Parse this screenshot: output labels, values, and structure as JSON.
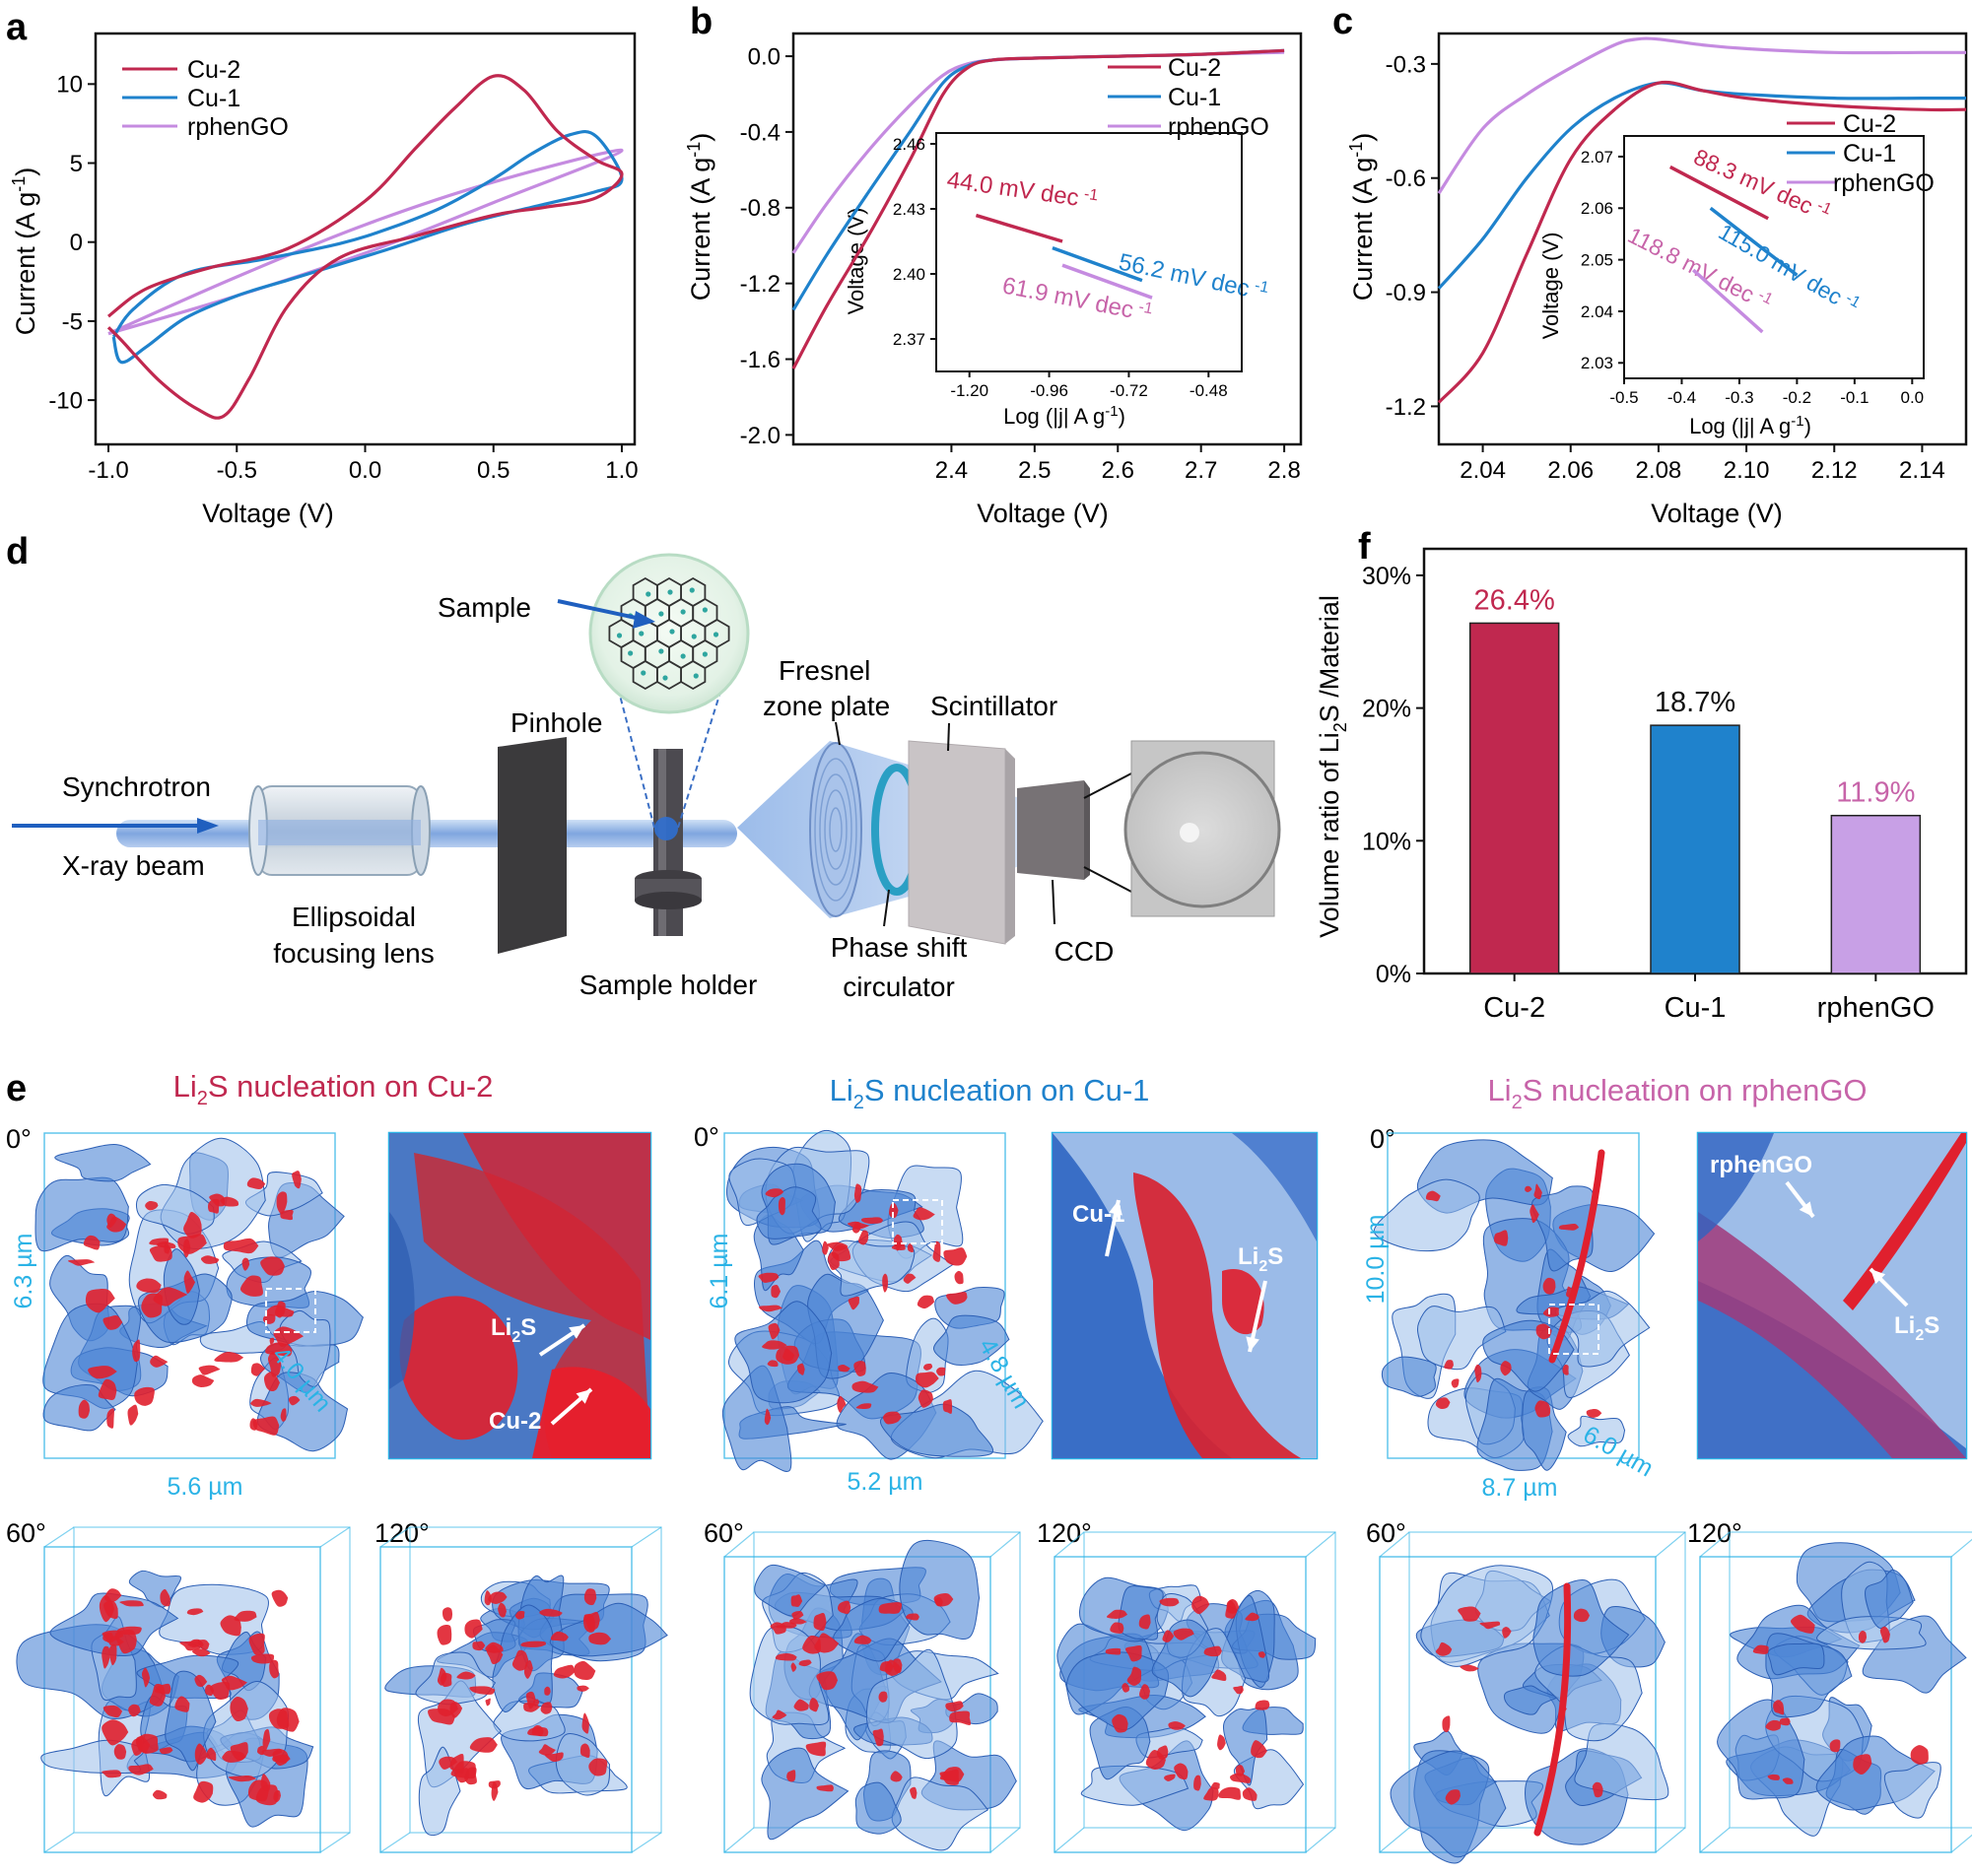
{
  "colors": {
    "cu2": "#c0284f",
    "cu1": "#1f82cc",
    "rphengo": "#c58be0",
    "bar_rphengo": "#c8a0e6",
    "cyan": "#2bb3e6",
    "mag": "#c764a9"
  },
  "panels": {
    "a": "a",
    "b": "b",
    "c": "c",
    "d": "d",
    "e": "e",
    "f": "f"
  },
  "legend": [
    "Cu-2",
    "Cu-1",
    "rphenGO"
  ],
  "chart_data": [
    {
      "id": "a",
      "type": "line",
      "xlabel": "Voltage (V)",
      "ylabel_main": "Current (A g",
      "ylabel_sup": "-1",
      "ylabel_end": ")",
      "xlim": [
        -1.05,
        1.05
      ],
      "ylim": [
        -12.8,
        13.2
      ],
      "xticks": [
        -1.0,
        -0.5,
        0.0,
        0.5,
        1.0
      ],
      "xtick_labels": [
        "-1.0",
        "-0.5",
        "0.0",
        "0.5",
        "1.0"
      ],
      "yticks": [
        -10,
        -5,
        0,
        5,
        10
      ],
      "ytick_labels": [
        "-10",
        "-5",
        "0",
        "5",
        "10"
      ],
      "series": [
        {
          "name": "Cu-2",
          "x": [
            -1.0,
            -0.9,
            -0.8,
            -0.6,
            -0.3,
            0.0,
            0.2,
            0.35,
            0.5,
            0.62,
            0.75,
            0.9,
            1.0,
            0.9,
            0.7,
            0.5,
            0.2,
            -0.1,
            -0.3,
            -0.45,
            -0.55,
            -0.65,
            -0.8,
            -0.95,
            -1.0
          ],
          "y": [
            -4.7,
            -3.4,
            -2.6,
            -1.6,
            -0.4,
            2.6,
            6.0,
            8.5,
            10.5,
            9.6,
            7.0,
            5.2,
            4.3,
            2.8,
            2.2,
            1.7,
            0.4,
            -1.0,
            -4.0,
            -8.6,
            -11.0,
            -10.6,
            -8.8,
            -6.2,
            -5.4
          ]
        },
        {
          "name": "Cu-1",
          "x": [
            -0.98,
            -0.9,
            -0.7,
            -0.4,
            -0.1,
            0.1,
            0.3,
            0.5,
            0.65,
            0.8,
            0.9,
            1.0,
            0.9,
            0.7,
            0.4,
            0.1,
            -0.1,
            -0.3,
            -0.5,
            -0.7,
            -0.85,
            -0.95,
            -0.98
          ],
          "y": [
            -6.0,
            -4.2,
            -2.0,
            -1.1,
            -0.1,
            0.9,
            2.2,
            4.0,
            5.6,
            6.8,
            6.7,
            4.0,
            3.2,
            2.4,
            1.2,
            -0.4,
            -1.4,
            -2.4,
            -3.4,
            -4.8,
            -6.6,
            -7.6,
            -6.0
          ]
        },
        {
          "name": "rphenGO",
          "x": [
            -1.0,
            -0.5,
            0.0,
            0.5,
            1.0,
            0.5,
            0.0,
            -0.5,
            -1.0
          ],
          "y": [
            -5.8,
            -2.2,
            1.1,
            3.8,
            5.8,
            2.5,
            -0.7,
            -3.4,
            -5.8
          ]
        }
      ]
    },
    {
      "id": "b",
      "type": "line",
      "xlabel": "Voltage (V)",
      "ylabel_main": "Current (A g",
      "ylabel_sup": "-1",
      "ylabel_end": ")",
      "xlim": [
        2.21,
        2.82
      ],
      "ylim": [
        -2.05,
        0.12
      ],
      "xticks": [
        2.4,
        2.5,
        2.6,
        2.7,
        2.8
      ],
      "xtick_labels": [
        "2.4",
        "2.5",
        "2.6",
        "2.7",
        "2.8"
      ],
      "yticks": [
        0.0,
        -0.4,
        -0.8,
        -1.2,
        -1.6,
        -2.0
      ],
      "ytick_labels": [
        "0.0",
        "-0.4",
        "-0.8",
        "-1.2",
        "-1.6",
        "-2.0"
      ],
      "series": [
        {
          "name": "Cu-2",
          "x": [
            2.21,
            2.25,
            2.3,
            2.35,
            2.39,
            2.42,
            2.45,
            2.5,
            2.6,
            2.7,
            2.8
          ],
          "y": [
            -1.65,
            -1.32,
            -0.95,
            -0.55,
            -0.2,
            -0.06,
            -0.02,
            -0.01,
            0.0,
            0.01,
            0.03
          ]
        },
        {
          "name": "Cu-1",
          "x": [
            2.21,
            2.25,
            2.3,
            2.35,
            2.39,
            2.42,
            2.45,
            2.5,
            2.6,
            2.7,
            2.8
          ],
          "y": [
            -1.34,
            -1.05,
            -0.72,
            -0.4,
            -0.14,
            -0.05,
            -0.02,
            -0.01,
            0.0,
            0.01,
            0.03
          ]
        },
        {
          "name": "rphenGO",
          "x": [
            2.21,
            2.25,
            2.3,
            2.35,
            2.39,
            2.42,
            2.45,
            2.5,
            2.6,
            2.7,
            2.8
          ],
          "y": [
            -1.04,
            -0.78,
            -0.5,
            -0.26,
            -0.1,
            -0.04,
            -0.02,
            -0.01,
            0.0,
            0.01,
            0.02
          ]
        }
      ],
      "inset": {
        "xlabel": "Log (|j| A g",
        "xlabel_sup": "-1",
        "xlabel_end": ")",
        "ylabel": "Voltage (V)",
        "xlim": [
          -1.3,
          -0.38
        ],
        "ylim": [
          2.355,
          2.465
        ],
        "xticks": [
          -1.2,
          -0.96,
          -0.72,
          -0.48
        ],
        "xtick_labels": [
          "-1.20",
          "-0.96",
          "-0.72",
          "-0.48"
        ],
        "yticks": [
          2.37,
          2.4,
          2.43,
          2.46
        ],
        "ytick_labels": [
          "2.37",
          "2.40",
          "2.43",
          "2.46"
        ],
        "lines": [
          {
            "name": "Cu-2",
            "x": [
              -1.18,
              -0.92
            ],
            "y": [
              2.427,
              2.415
            ]
          },
          {
            "name": "Cu-1",
            "x": [
              -0.95,
              -0.68
            ],
            "y": [
              2.412,
              2.397
            ]
          },
          {
            "name": "rphenGO",
            "x": [
              -0.92,
              -0.65
            ],
            "y": [
              2.404,
              2.389
            ]
          }
        ],
        "annotations": [
          {
            "series": "Cu-2",
            "text": "44.0 mV dec",
            "sup": "-1"
          },
          {
            "series": "Cu-1",
            "text": "56.2 mV dec",
            "sup": "-1"
          },
          {
            "series": "rphenGO",
            "text": "61.9 mV dec",
            "sup": "-1"
          }
        ]
      }
    },
    {
      "id": "c",
      "type": "line",
      "xlabel": "Voltage (V)",
      "ylabel_main": "Current (A g",
      "ylabel_sup": "-1",
      "ylabel_end": ")",
      "xlim": [
        2.03,
        2.15
      ],
      "ylim": [
        -1.3,
        -0.22
      ],
      "xticks": [
        2.04,
        2.06,
        2.08,
        2.1,
        2.12,
        2.14
      ],
      "xtick_labels": [
        "2.04",
        "2.06",
        "2.08",
        "2.10",
        "2.12",
        "2.14"
      ],
      "yticks": [
        -0.3,
        -0.6,
        -0.9,
        -1.2
      ],
      "ytick_labels": [
        "-0.3",
        "-0.6",
        "-0.9",
        "-1.2"
      ],
      "series": [
        {
          "name": "Cu-2",
          "x": [
            2.03,
            2.04,
            2.05,
            2.06,
            2.07,
            2.08,
            2.09,
            2.1,
            2.12,
            2.14,
            2.15
          ],
          "y": [
            -1.19,
            -1.06,
            -0.8,
            -0.55,
            -0.42,
            -0.35,
            -0.37,
            -0.39,
            -0.41,
            -0.42,
            -0.42
          ]
        },
        {
          "name": "Cu-1",
          "x": [
            2.03,
            2.04,
            2.05,
            2.06,
            2.07,
            2.08,
            2.09,
            2.1,
            2.12,
            2.14,
            2.15
          ],
          "y": [
            -0.89,
            -0.76,
            -0.6,
            -0.47,
            -0.39,
            -0.35,
            -0.37,
            -0.38,
            -0.39,
            -0.39,
            -0.39
          ]
        },
        {
          "name": "rphenGO",
          "x": [
            2.03,
            2.04,
            2.05,
            2.06,
            2.07,
            2.075,
            2.08,
            2.09,
            2.1,
            2.12,
            2.14,
            2.15
          ],
          "y": [
            -0.64,
            -0.47,
            -0.38,
            -0.31,
            -0.25,
            -0.235,
            -0.235,
            -0.25,
            -0.26,
            -0.27,
            -0.27,
            -0.27
          ]
        }
      ],
      "inset": {
        "xlabel": "Log (|j| A g",
        "xlabel_sup": "-1",
        "xlabel_end": ")",
        "ylabel": "Voltage (V)",
        "xlim": [
          -0.5,
          0.02
        ],
        "ylim": [
          2.027,
          2.074
        ],
        "xticks": [
          -0.5,
          -0.4,
          -0.3,
          -0.2,
          -0.1,
          0.0
        ],
        "xtick_labels": [
          "-0.5",
          "-0.4",
          "-0.3",
          "-0.2",
          "-0.1",
          "0.0"
        ],
        "yticks": [
          2.03,
          2.04,
          2.05,
          2.06,
          2.07
        ],
        "ytick_labels": [
          "2.03",
          "2.04",
          "2.05",
          "2.06",
          "2.07"
        ],
        "lines": [
          {
            "name": "Cu-2",
            "x": [
              -0.42,
              -0.25
            ],
            "y": [
              2.068,
              2.058
            ]
          },
          {
            "name": "Cu-1",
            "x": [
              -0.35,
              -0.2
            ],
            "y": [
              2.06,
              2.047
            ]
          },
          {
            "name": "rphenGO",
            "x": [
              -0.38,
              -0.26
            ],
            "y": [
              2.048,
              2.036
            ]
          }
        ],
        "annotations": [
          {
            "series": "Cu-2",
            "text": "88.3 mV dec",
            "sup": "-1"
          },
          {
            "series": "Cu-1",
            "text": "115.0 mV dec",
            "sup": "-1"
          },
          {
            "series": "rphenGO",
            "text": "118.8 mV dec",
            "sup": "-1"
          }
        ]
      }
    },
    {
      "id": "f",
      "type": "bar",
      "ylabel_main": "Volume ratio of Li",
      "ylabel_sub": "2",
      "ylabel_end": "S /Material",
      "categories": [
        "Cu-2",
        "Cu-1",
        "rphenGO"
      ],
      "values": [
        26.4,
        18.7,
        11.9
      ],
      "value_labels": [
        "26.4%",
        "18.7%",
        "11.9%"
      ],
      "ylim": [
        0,
        32
      ],
      "yticks": [
        0,
        10,
        20,
        30
      ],
      "ytick_labels": [
        "0%",
        "10%",
        "20%",
        "30%"
      ]
    }
  ],
  "diagram_d": {
    "sample": "Sample",
    "fresnel_1": "Fresnel",
    "fresnel_2": "zone plate",
    "scintillator": "Scintillator",
    "pinhole": "Pinhole",
    "synchrotron": "Synchrotron",
    "xray": "X-ray beam",
    "lens_1": "Ellipsoidal",
    "lens_2": "focusing lens",
    "holder": "Sample holder",
    "phase_1": "Phase shift",
    "phase_2": "circulator",
    "ccd": "CCD"
  },
  "panel_e": {
    "groups": [
      {
        "title_pre": "Li",
        "title_sub": "2",
        "title_post": "S nucleation on Cu-2",
        "angle0": "0°",
        "angle60": "60°",
        "angle120": "120°",
        "dim_h": "6.3 µm",
        "dim_w": "5.6 µm",
        "dim_d": "4.0 µm",
        "label_a_pre": "Li",
        "label_a_sub": "2",
        "label_a_post": "S",
        "label_b": "Cu-2"
      },
      {
        "title_pre": "Li",
        "title_sub": "2",
        "title_post": "S nucleation on Cu-1",
        "angle0": "0°",
        "angle60": "60°",
        "angle120": "120°",
        "dim_h": "6.1 µm",
        "dim_w": "5.2 µm",
        "dim_d": "4.8 µm",
        "label_a": "Cu-1",
        "label_b_pre": "Li",
        "label_b_sub": "2",
        "label_b_post": "S"
      },
      {
        "title_pre": "Li",
        "title_sub": "2",
        "title_post": "S nucleation on rphenGO",
        "angle0": "0°",
        "angle60": "60°",
        "angle120": "120°",
        "dim_h": "10.0 µm",
        "dim_w": "8.7 µm",
        "dim_d": "6.0 µm",
        "label_a": "rphenGO",
        "label_b_pre": "Li",
        "label_b_sub": "2",
        "label_b_post": "S"
      }
    ]
  }
}
